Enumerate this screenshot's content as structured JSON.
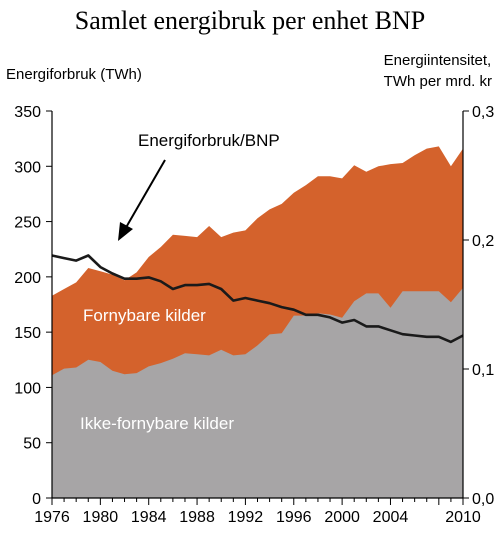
{
  "chart_data": {
    "type": "area",
    "title": "Samlet energibruk per enhet BNP",
    "ylabel": "Energiforbruk (TWh)",
    "ylabel_right_line1": "Energiintensitet,",
    "ylabel_right_line2": "TWh per mrd. kr",
    "xlim": [
      1976,
      2010
    ],
    "ylim": [
      0,
      350
    ],
    "ylim_right": [
      0,
      0.3
    ],
    "x_ticks": [
      1976,
      1980,
      1984,
      1988,
      1992,
      1996,
      2000,
      2004,
      2010
    ],
    "x_tick_labels": [
      "1976",
      "1980",
      "1984",
      "1988",
      "1992",
      "1996",
      "2000",
      "2004",
      "2010"
    ],
    "y_ticks": [
      0,
      50,
      100,
      150,
      200,
      250,
      300,
      350
    ],
    "y_tick_labels": [
      "0",
      "50",
      "100",
      "150",
      "200",
      "250",
      "300",
      "350"
    ],
    "y_ticks_right": [
      0,
      0.1,
      0.2,
      0.3
    ],
    "y_tick_labels_right": [
      "0,0",
      "0,1",
      "0,2",
      "0,3"
    ],
    "x": [
      1976,
      1977,
      1978,
      1979,
      1980,
      1981,
      1982,
      1983,
      1984,
      1985,
      1986,
      1987,
      1988,
      1989,
      1990,
      1991,
      1992,
      1993,
      1994,
      1995,
      1996,
      1997,
      1998,
      1999,
      2000,
      2001,
      2002,
      2003,
      2004,
      2005,
      2006,
      2007,
      2008,
      2009,
      2010
    ],
    "series": [
      {
        "name": "Ikke-fornybare kilder",
        "axis": "left",
        "color": "#a7a5a6",
        "values": [
          111,
          117,
          118,
          125,
          123,
          115,
          112,
          113,
          119,
          122,
          126,
          131,
          130,
          129,
          134,
          129,
          130,
          138,
          148,
          149,
          165,
          165,
          167,
          166,
          163,
          178,
          185,
          185,
          172,
          187,
          187,
          187,
          187,
          177,
          190
        ]
      },
      {
        "name": "Fornybare kilder",
        "axis": "left",
        "stacked_total": true,
        "color": "#d4622c",
        "values": [
          183,
          189,
          195,
          208,
          205,
          202,
          197,
          204,
          218,
          227,
          238,
          237,
          236,
          246,
          236,
          240,
          242,
          253,
          261,
          266,
          276,
          283,
          291,
          291,
          289,
          301,
          295,
          300,
          302,
          303,
          310,
          316,
          318,
          300,
          316
        ]
      },
      {
        "name": "Energiforbruk/BNP",
        "axis": "right",
        "color": "#1a1a1a",
        "values": [
          0.188,
          0.186,
          0.184,
          0.188,
          0.179,
          0.174,
          0.17,
          0.17,
          0.171,
          0.168,
          0.162,
          0.165,
          0.165,
          0.166,
          0.162,
          0.153,
          0.155,
          0.153,
          0.151,
          0.148,
          0.146,
          0.142,
          0.142,
          0.14,
          0.136,
          0.138,
          0.133,
          0.133,
          0.13,
          0.127,
          0.126,
          0.125,
          0.125,
          0.121,
          0.126
        ]
      }
    ],
    "annotations": {
      "line_label": "Energiforbruk/BNP",
      "renewable_label": "Fornybare kilder",
      "nonrenewable_label": "Ikke-fornybare kilder"
    },
    "grid": false
  }
}
